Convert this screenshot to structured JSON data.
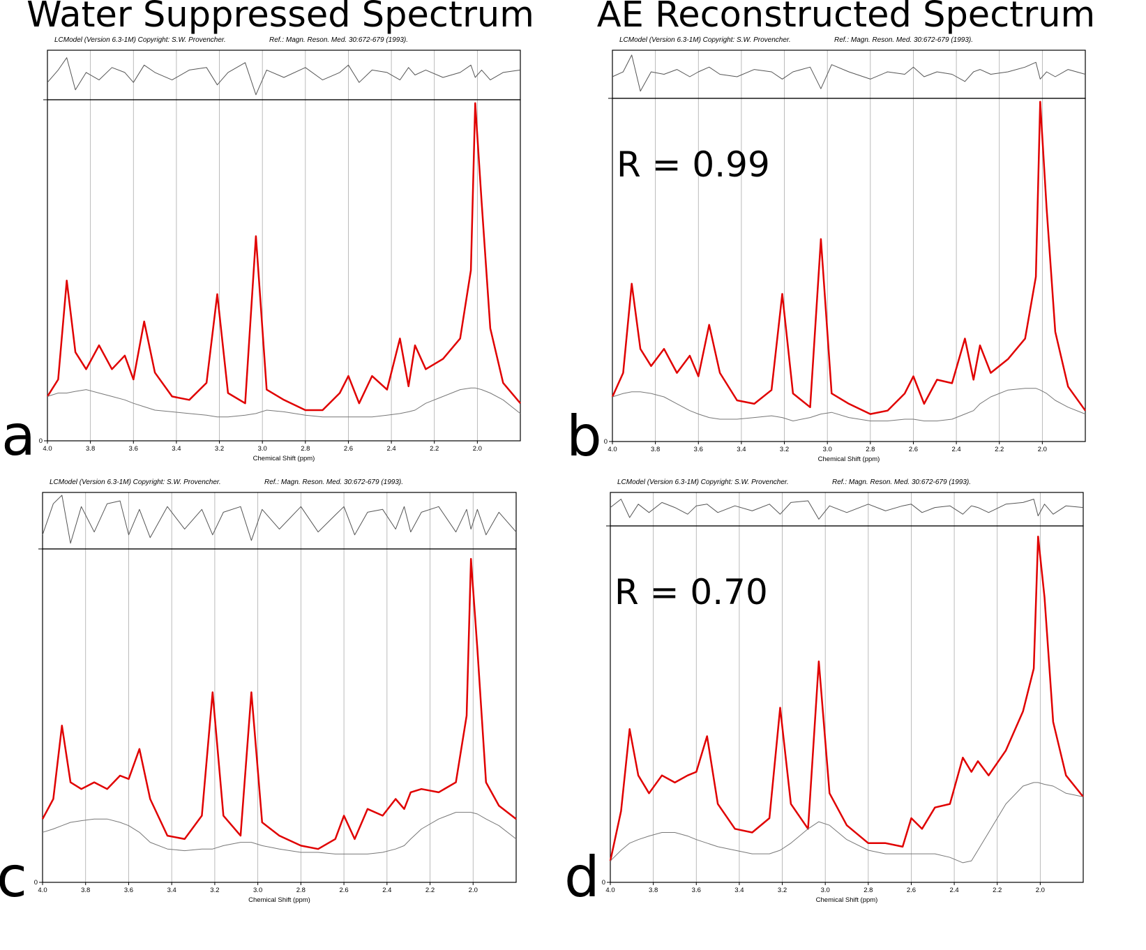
{
  "titles": [
    "Water Suppressed Spectrum",
    "AE Reconstructed Spectrum"
  ],
  "chart_data": [
    {
      "type": "line",
      "panel_label": "a",
      "header": "LCModel (Version 6.3-1M) Copyright: S.W. Provencher.",
      "reference": "Ref.: Magn. Reson. Med. 30:672-679 (1993).",
      "xlabel": "Chemical Shift (ppm)",
      "x": [
        4.0,
        3.95,
        3.91,
        3.87,
        3.82,
        3.76,
        3.7,
        3.64,
        3.6,
        3.55,
        3.5,
        3.42,
        3.34,
        3.26,
        3.21,
        3.16,
        3.08,
        3.03,
        2.98,
        2.9,
        2.8,
        2.72,
        2.64,
        2.6,
        2.55,
        2.49,
        2.42,
        2.36,
        2.32,
        2.29,
        2.24,
        2.16,
        2.08,
        2.03,
        2.01,
        1.98,
        1.94,
        1.88,
        1.8
      ],
      "xlim": [
        4.0,
        1.8
      ],
      "xticks": [
        {
          "value": 4,
          "label": "4.0"
        },
        3.8,
        3.6,
        3.4,
        3.2,
        {
          "value": 3,
          "label": "3.0"
        },
        2.8,
        2.6,
        2.4,
        2.2,
        {
          "value": 2,
          "label": "2.0"
        }
      ],
      "ylim": [
        0,
        100
      ],
      "yticks": [
        0
      ],
      "y2lim": [
        -1,
        1
      ],
      "grid": true,
      "series": [
        {
          "color": "#e00000",
          "values": [
            13,
            18,
            47,
            26,
            21,
            28,
            21,
            25,
            18,
            35,
            20,
            13,
            12,
            17,
            43,
            14,
            11,
            60,
            15,
            12,
            9,
            9,
            14,
            19,
            11,
            19,
            15,
            30,
            16,
            28,
            21,
            24,
            30,
            50,
            99,
            70,
            33,
            17,
            11
          ]
        },
        {
          "color": "#777777",
          "values": [
            13,
            14,
            14,
            14.5,
            15,
            14,
            13,
            12,
            11,
            10,
            9,
            8.5,
            8,
            7.5,
            7,
            7,
            7.5,
            8,
            9,
            8.5,
            7.5,
            7,
            7,
            7,
            7,
            7,
            7.5,
            8,
            8.5,
            9,
            11,
            13,
            15,
            15.5,
            15.5,
            15,
            14,
            12,
            8
          ]
        },
        {
          "color": "#555555",
          "axis": "y2",
          "values": [
            -0.3,
            0.2,
            0.7,
            -0.6,
            0.1,
            -0.2,
            0.3,
            0.1,
            -0.3,
            0.4,
            0.1,
            -0.2,
            0.2,
            0.3,
            -0.4,
            0.1,
            0.5,
            -0.8,
            0.2,
            -0.1,
            0.3,
            -0.2,
            0.1,
            0.4,
            -0.3,
            0.2,
            0.1,
            -0.2,
            0.3,
            0,
            0.2,
            -0.1,
            0.1,
            0.4,
            -0.1,
            0.2,
            -0.2,
            0.1,
            0.2
          ]
        }
      ]
    },
    {
      "type": "line",
      "panel_label": "b",
      "header": "LCModel (Version 6.3-1M) Copyright: S.W. Provencher.",
      "reference": "Ref.: Magn. Reson. Med. 30:672-679 (1993).",
      "xlabel": "Chemical Shift (ppm)",
      "annotation": "R = 0.99",
      "x": [
        4.0,
        3.95,
        3.91,
        3.87,
        3.82,
        3.76,
        3.7,
        3.64,
        3.6,
        3.55,
        3.5,
        3.42,
        3.34,
        3.26,
        3.21,
        3.16,
        3.08,
        3.03,
        2.98,
        2.9,
        2.8,
        2.72,
        2.64,
        2.6,
        2.55,
        2.49,
        2.42,
        2.36,
        2.32,
        2.29,
        2.24,
        2.16,
        2.08,
        2.03,
        2.01,
        1.98,
        1.94,
        1.88,
        1.8
      ],
      "xlim": [
        4.0,
        1.8
      ],
      "xticks": [
        {
          "value": 4,
          "label": "4.0"
        },
        3.8,
        3.6,
        3.4,
        3.2,
        {
          "value": 3,
          "label": "3.0"
        },
        2.8,
        2.6,
        2.4,
        2.2,
        {
          "value": 2,
          "label": "2.0"
        }
      ],
      "ylim": [
        0,
        100
      ],
      "yticks": [
        0
      ],
      "y2lim": [
        -1,
        1
      ],
      "grid": true,
      "series": [
        {
          "color": "#e00000",
          "values": [
            13,
            20,
            46,
            27,
            22,
            27,
            20,
            25,
            19,
            34,
            20,
            12,
            11,
            15,
            43,
            14,
            10,
            59,
            14,
            11,
            8,
            9,
            14,
            19,
            11,
            18,
            17,
            30,
            18,
            28,
            20,
            24,
            30,
            48,
            99,
            68,
            32,
            16,
            9
          ]
        },
        {
          "color": "#777777",
          "values": [
            13,
            14,
            14.5,
            14.5,
            14,
            13,
            11,
            9,
            8,
            7,
            6.5,
            6.5,
            7,
            7.5,
            7,
            6,
            7,
            8,
            8.5,
            7,
            6,
            6,
            6.5,
            6.5,
            6,
            6,
            6.5,
            8,
            9,
            11,
            13,
            15,
            15.5,
            15.5,
            15,
            14,
            12,
            10,
            8
          ]
        },
        {
          "color": "#555555",
          "axis": "y2",
          "values": [
            -0.1,
            0.1,
            0.8,
            -0.7,
            0.1,
            0,
            0.2,
            -0.1,
            0.1,
            0.3,
            0,
            -0.1,
            0.2,
            0.1,
            -0.2,
            0.1,
            0.3,
            -0.6,
            0.4,
            0.1,
            -0.2,
            0.1,
            0,
            0.3,
            -0.1,
            0.1,
            0,
            -0.3,
            0.1,
            0.2,
            0,
            0.1,
            0.3,
            0.5,
            -0.2,
            0.1,
            -0.1,
            0.2,
            0
          ]
        }
      ]
    },
    {
      "type": "line",
      "panel_label": "c",
      "header": "LCModel (Version 6.3-1M) Copyright: S.W. Provencher.",
      "reference": "Ref.: Magn. Reson. Med. 30:672-679 (1993).",
      "xlabel": "Chemical Shift (ppm)",
      "x": [
        4.0,
        3.95,
        3.91,
        3.87,
        3.82,
        3.76,
        3.7,
        3.64,
        3.6,
        3.55,
        3.5,
        3.42,
        3.34,
        3.26,
        3.21,
        3.16,
        3.08,
        3.03,
        2.98,
        2.9,
        2.8,
        2.72,
        2.64,
        2.6,
        2.55,
        2.49,
        2.42,
        2.36,
        2.32,
        2.29,
        2.24,
        2.16,
        2.08,
        2.03,
        2.01,
        1.98,
        1.94,
        1.88,
        1.8
      ],
      "xlim": [
        4.0,
        1.8
      ],
      "xticks": [
        {
          "value": 4,
          "label": "4.0"
        },
        3.8,
        3.6,
        3.4,
        3.2,
        {
          "value": 3,
          "label": "3.0"
        },
        2.8,
        2.6,
        2.4,
        2.2,
        {
          "value": 2,
          "label": "2.0"
        }
      ],
      "ylim": [
        0,
        100
      ],
      "yticks": [
        0
      ],
      "y2lim": [
        -1,
        1
      ],
      "grid": true,
      "series": [
        {
          "color": "#e00000",
          "values": [
            19,
            25,
            47,
            30,
            28,
            30,
            28,
            32,
            31,
            40,
            25,
            14,
            13,
            20,
            57,
            20,
            14,
            57,
            18,
            14,
            11,
            10,
            13,
            20,
            13,
            22,
            20,
            25,
            22,
            27,
            28,
            27,
            30,
            50,
            97,
            70,
            30,
            23,
            19
          ]
        },
        {
          "color": "#777777",
          "values": [
            15,
            16,
            17,
            18,
            18.5,
            19,
            19,
            18,
            17,
            15,
            12,
            10,
            9.5,
            10,
            10,
            11,
            12,
            12,
            11,
            10,
            9,
            9,
            8.5,
            8.5,
            8.5,
            8.5,
            9,
            10,
            11,
            13,
            16,
            19,
            21,
            21,
            21,
            20.5,
            19,
            17,
            13
          ]
        },
        {
          "color": "#555555",
          "axis": "y2",
          "values": [
            -0.5,
            0.6,
            0.9,
            -0.8,
            0.5,
            -0.4,
            0.6,
            0.7,
            -0.5,
            0.4,
            -0.6,
            0.5,
            -0.3,
            0.4,
            -0.5,
            0.3,
            0.5,
            -0.7,
            0.4,
            -0.3,
            0.5,
            -0.4,
            0.2,
            0.5,
            -0.5,
            0.3,
            0.4,
            -0.3,
            0.5,
            -0.4,
            0.3,
            0.5,
            -0.4,
            0.4,
            -0.3,
            0.4,
            -0.5,
            0.3,
            -0.4
          ]
        }
      ]
    },
    {
      "type": "line",
      "panel_label": "d",
      "header": "LCModel (Version 6.3-1M) Copyright: S.W. Provencher.",
      "reference": "Ref.: Magn. Reson. Med. 30:672-679 (1993).",
      "xlabel": "Chemical Shift (ppm)",
      "annotation": "R = 0.70",
      "x": [
        4.0,
        3.95,
        3.91,
        3.87,
        3.82,
        3.76,
        3.7,
        3.64,
        3.6,
        3.55,
        3.5,
        3.42,
        3.34,
        3.26,
        3.21,
        3.16,
        3.08,
        3.03,
        2.98,
        2.9,
        2.8,
        2.72,
        2.64,
        2.6,
        2.55,
        2.49,
        2.42,
        2.36,
        2.32,
        2.29,
        2.24,
        2.16,
        2.08,
        2.03,
        2.01,
        1.98,
        1.94,
        1.88,
        1.8
      ],
      "xlim": [
        4.0,
        1.8
      ],
      "xticks": [
        {
          "value": 4,
          "label": "4.0"
        },
        3.8,
        3.6,
        3.4,
        3.2,
        {
          "value": 3,
          "label": "3.0"
        },
        2.8,
        2.6,
        2.4,
        2.2,
        {
          "value": 2,
          "label": "2.0"
        }
      ],
      "ylim": [
        0,
        100
      ],
      "yticks": [
        0
      ],
      "y2lim": [
        -1,
        1
      ],
      "grid": true,
      "series": [
        {
          "color": "#e00000",
          "values": [
            6,
            20,
            43,
            30,
            25,
            30,
            28,
            30,
            31,
            41,
            22,
            15,
            14,
            18,
            49,
            22,
            15,
            62,
            25,
            16,
            11,
            11,
            10,
            18,
            15,
            21,
            22,
            35,
            31,
            34,
            30,
            37,
            48,
            60,
            97,
            80,
            45,
            30,
            24
          ]
        },
        {
          "color": "#777777",
          "values": [
            6,
            9,
            11,
            12,
            13,
            14,
            14,
            13,
            12,
            11,
            10,
            9,
            8,
            8,
            9,
            11,
            15,
            17,
            16,
            12,
            9,
            8,
            8,
            8,
            8,
            8,
            7,
            5.5,
            6,
            9,
            14,
            22,
            27,
            28,
            28,
            27.5,
            27,
            25,
            24
          ]
        },
        {
          "color": "#555555",
          "axis": "y2",
          "values": [
            0.1,
            0.6,
            -0.5,
            0.3,
            -0.2,
            0.4,
            0.1,
            -0.3,
            0.2,
            0.3,
            -0.2,
            0.2,
            -0.1,
            0.3,
            -0.3,
            0.4,
            0.5,
            -0.6,
            0.2,
            -0.2,
            0.3,
            -0.1,
            0.2,
            0.3,
            -0.2,
            0.1,
            0.2,
            -0.3,
            0.2,
            0.1,
            -0.2,
            0.3,
            0.4,
            0.6,
            -0.4,
            0.3,
            -0.3,
            0.2,
            0.1
          ]
        }
      ]
    }
  ]
}
